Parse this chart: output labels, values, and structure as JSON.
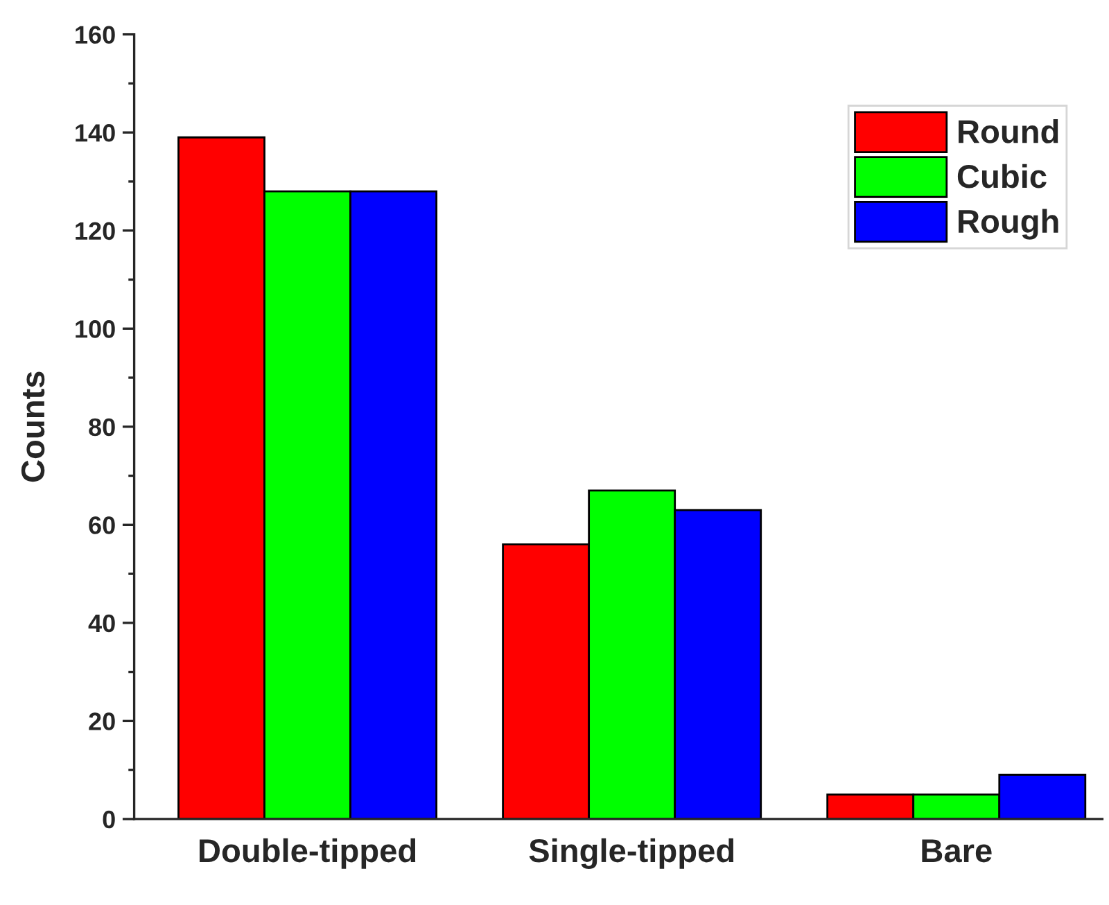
{
  "chart_data": {
    "type": "bar",
    "ylabel": "Counts",
    "categories": [
      "Double-tipped",
      "Single-tipped",
      "Bare"
    ],
    "series": [
      {
        "name": "Round",
        "color": "#ff0000",
        "values": [
          139,
          56,
          5
        ]
      },
      {
        "name": "Cubic",
        "color": "#00ff00",
        "values": [
          128,
          67,
          5
        ]
      },
      {
        "name": "Rough",
        "color": "#0000ff",
        "values": [
          128,
          63,
          9
        ]
      }
    ],
    "ylim": [
      0,
      160
    ],
    "yticks": [
      0,
      20,
      40,
      60,
      80,
      100,
      120,
      140,
      160
    ],
    "grid": false,
    "legend": "top right"
  }
}
